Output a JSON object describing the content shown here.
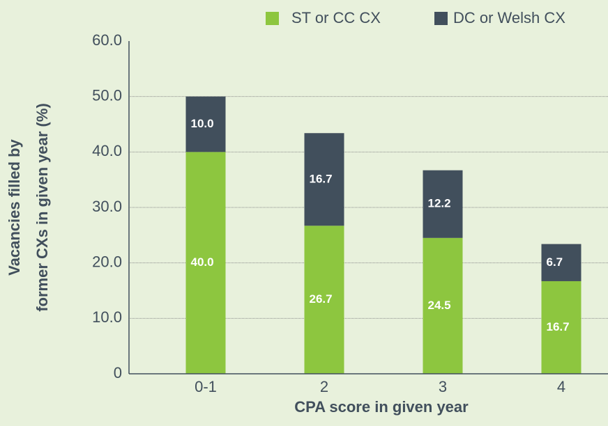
{
  "chart_data": {
    "type": "stacked_bar",
    "categories": [
      "0-1",
      "2",
      "3",
      "4"
    ],
    "series": [
      {
        "name": "ST or CC CX",
        "color": "#8dc63f",
        "values": [
          40.0,
          26.7,
          24.5,
          16.7
        ],
        "value_labels": [
          "40.0",
          "26.7",
          "24.5",
          "16.7"
        ]
      },
      {
        "name": "DC or Welsh CX",
        "color": "#414f5c",
        "values": [
          10.0,
          16.7,
          12.2,
          6.7
        ],
        "value_labels": [
          "10.0",
          "16.7",
          "12.2",
          "6.7"
        ]
      }
    ],
    "ylim": [
      0,
      60
    ],
    "yticks": [
      0,
      {
        "value": 10,
        "label": "10.0"
      },
      {
        "value": 20,
        "label": "20.0"
      },
      {
        "value": 30,
        "label": "30.0"
      },
      {
        "value": 40,
        "label": "40.0"
      },
      {
        "value": 50,
        "label": "50.0"
      },
      {
        "value": 60,
        "label": "60.0"
      }
    ],
    "ylabel": [
      "Vacancies filled by",
      "former CXs in given year (%)"
    ],
    "xlabel": "CPA score in given year",
    "grid": true,
    "legend": "top-right"
  }
}
